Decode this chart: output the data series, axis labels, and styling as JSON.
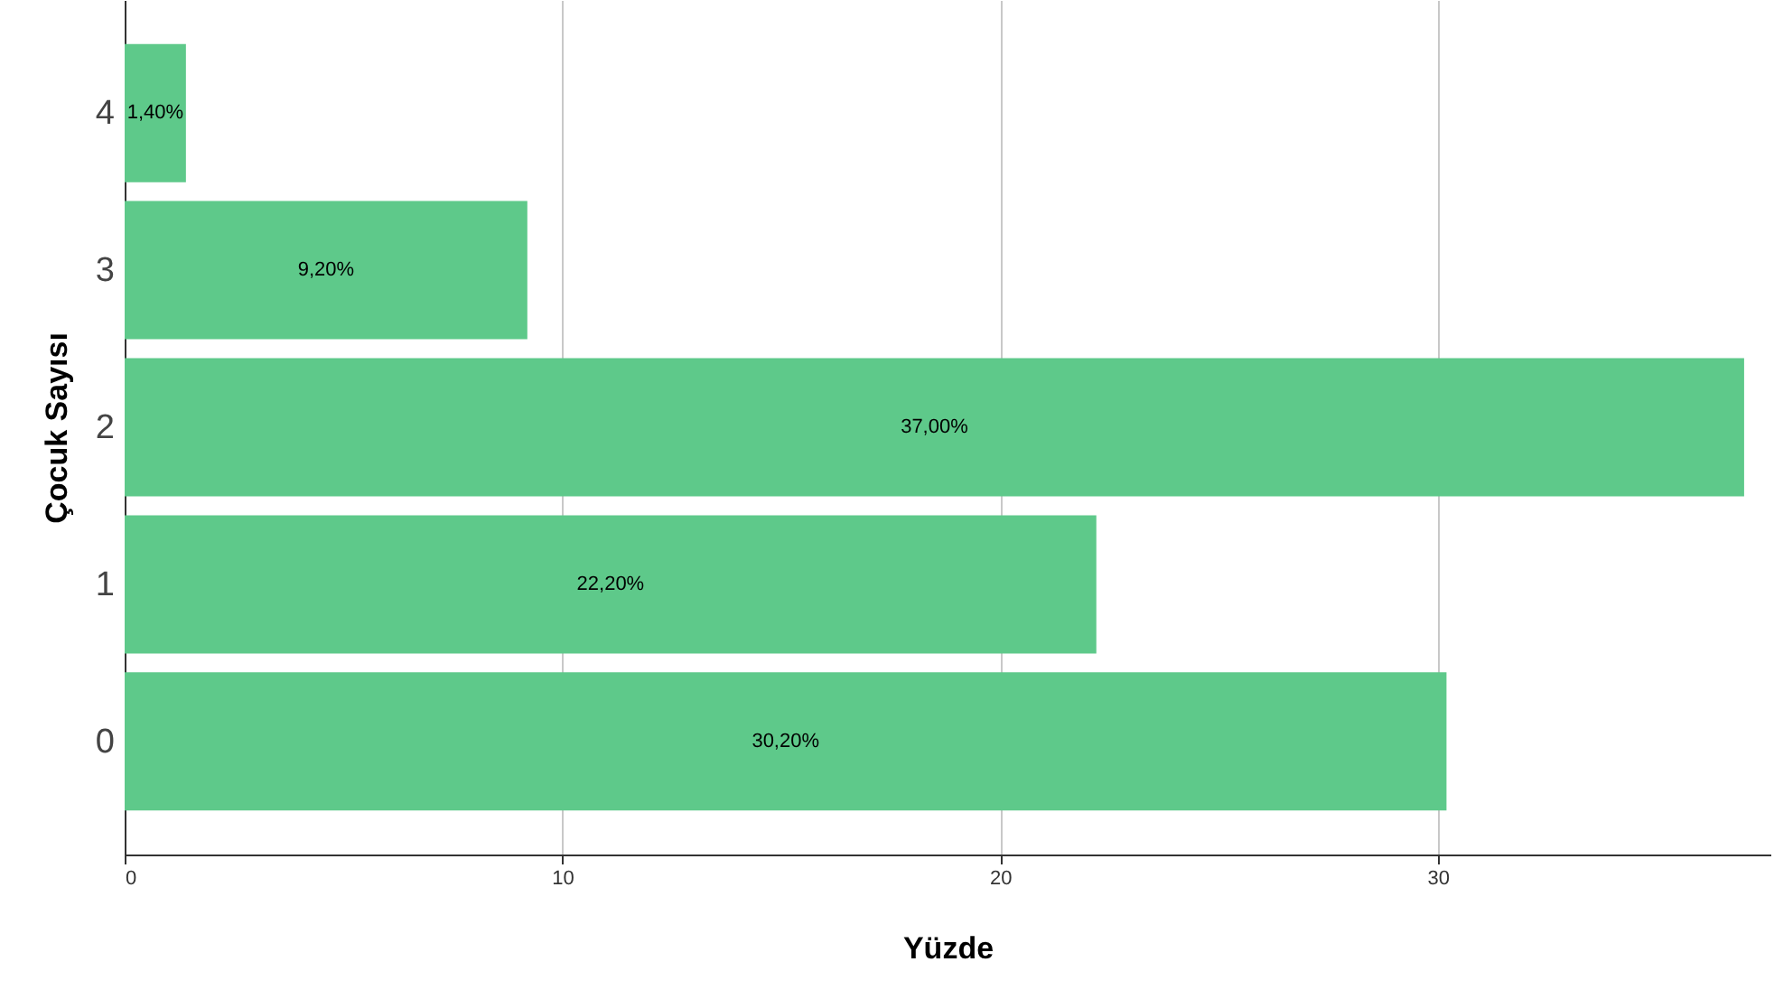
{
  "chart_data": {
    "type": "bar",
    "orientation": "horizontal",
    "xlabel": "Yüzde",
    "ylabel": "Çocuk Sayısı",
    "categories": [
      "4",
      "3",
      "2",
      "1",
      "0"
    ],
    "values": [
      1.4,
      9.2,
      37,
      22.2,
      30.2
    ],
    "value_labels": [
      "1,40%",
      "9,20%",
      "37,00%",
      "22,20%",
      "30,20%"
    ],
    "color": "#5ec98a",
    "xlim": [
      0,
      37.6
    ],
    "xticks": [
      0,
      10,
      20,
      30
    ],
    "grid": "x"
  }
}
